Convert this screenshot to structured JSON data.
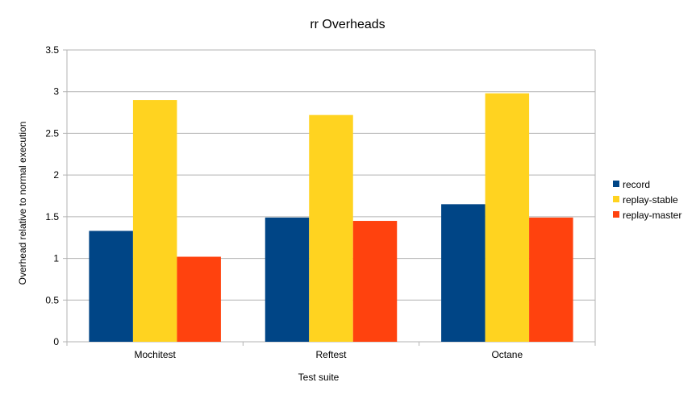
{
  "chart_data": {
    "type": "bar",
    "title": "rr Overheads",
    "xlabel": "Test suite",
    "ylabel": "Overhead relative to normal execution",
    "categories": [
      "Mochitest",
      "Reftest",
      "Octane"
    ],
    "series": [
      {
        "name": "record",
        "color": "#004586",
        "values": [
          1.33,
          1.49,
          1.65
        ]
      },
      {
        "name": "replay-stable",
        "color": "#ffd320",
        "values": [
          2.9,
          2.72,
          2.98
        ]
      },
      {
        "name": "replay-master",
        "color": "#ff420e",
        "values": [
          1.02,
          1.45,
          1.49
        ]
      }
    ],
    "ylim": [
      0,
      3.5
    ],
    "yticks": [
      "0",
      "0.5",
      "1",
      "1.5",
      "2",
      "2.5",
      "3",
      "3.5"
    ],
    "grid": true,
    "legend_position": "right"
  }
}
